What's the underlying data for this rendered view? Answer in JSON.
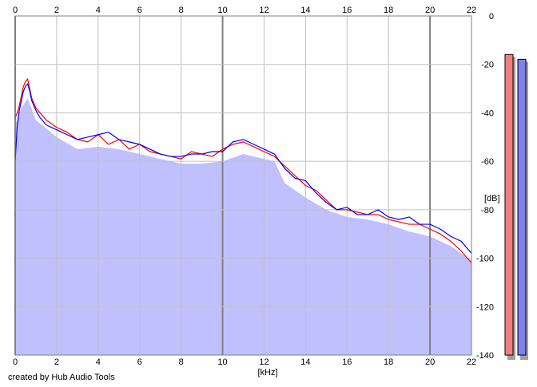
{
  "chart_data": {
    "type": "line",
    "xlabel": "[kHz]",
    "ylabel": "[dB]",
    "xlim": [
      0,
      22
    ],
    "ylim": [
      -140,
      0
    ],
    "x_ticks": [
      "0",
      "2",
      "4",
      "6",
      "8",
      "10",
      "12",
      "14",
      "16",
      "18",
      "20",
      "22"
    ],
    "y_ticks": [
      "0",
      "-20",
      "-40",
      "-60",
      "-80",
      "-100",
      "-120",
      "-140"
    ],
    "grid": true,
    "series": [
      {
        "color": "#ff0000",
        "x": [
          0,
          0.1,
          0.2,
          0.3,
          0.4,
          0.5,
          0.6,
          0.7,
          0.8,
          1,
          1.2,
          1.5,
          2,
          2.5,
          3,
          3.5,
          4,
          4.5,
          5,
          5.5,
          6,
          6.5,
          7,
          7.5,
          8,
          8.5,
          9,
          9.5,
          10,
          10.5,
          11,
          11.5,
          12,
          12.5,
          13,
          13.5,
          14,
          14.5,
          15,
          15.5,
          16,
          16.5,
          17,
          17.5,
          18,
          18.5,
          19,
          19.5,
          20,
          20.5,
          21,
          21.5,
          22
        ],
        "y": [
          -42,
          -40,
          -37,
          -33,
          -29,
          -27,
          -26,
          -30,
          -34,
          -38,
          -40,
          -43,
          -46,
          -48,
          -51,
          -52,
          -49,
          -53,
          -51,
          -55,
          -53,
          -56,
          -57,
          -58,
          -59,
          -56,
          -57,
          -58,
          -55,
          -53,
          -52,
          -54,
          -56,
          -58,
          -62,
          -66,
          -70,
          -72,
          -76,
          -80,
          -80,
          -81,
          -82,
          -82,
          -84,
          -85,
          -86,
          -86,
          -88,
          -90,
          -93,
          -97,
          -102
        ]
      },
      {
        "color": "#0000ff",
        "x": [
          0,
          0.1,
          0.2,
          0.3,
          0.4,
          0.5,
          0.6,
          0.7,
          0.8,
          1,
          1.2,
          1.5,
          2,
          2.5,
          3,
          3.5,
          4,
          4.5,
          5,
          5.5,
          6,
          6.5,
          7,
          7.5,
          8,
          8.5,
          9,
          9.5,
          10,
          10.5,
          11,
          11.5,
          12,
          12.5,
          13,
          13.5,
          14,
          14.5,
          15,
          15.5,
          16,
          16.5,
          17,
          17.5,
          18,
          18.5,
          19,
          19.5,
          20,
          20.5,
          21,
          21.5,
          22
        ],
        "y": [
          -60,
          -45,
          -39,
          -35,
          -31,
          -29,
          -28,
          -31,
          -35,
          -39,
          -42,
          -45,
          -47,
          -49,
          -51,
          -50,
          -49,
          -48,
          -51,
          -52,
          -53,
          -55,
          -57,
          -58,
          -58,
          -57,
          -57,
          -56,
          -56,
          -52,
          -51,
          -53,
          -55,
          -57,
          -63,
          -67,
          -68,
          -73,
          -77,
          -80,
          -79,
          -82,
          -82,
          -80,
          -83,
          -84,
          -83,
          -86,
          -86,
          -88,
          -91,
          -93,
          -98
        ]
      }
    ],
    "filled_area": {
      "color": "#c0c0ff",
      "floor": -140,
      "x": [
        0,
        0.3,
        0.6,
        1,
        2,
        3,
        4,
        5,
        6,
        7,
        8,
        9,
        10,
        11,
        12,
        12.5,
        13,
        14,
        15,
        16,
        17,
        18,
        19,
        20,
        21,
        22
      ],
      "y": [
        -45,
        -38,
        -34,
        -43,
        -50,
        -55,
        -54,
        -55,
        -57,
        -59,
        -61,
        -61,
        -60,
        -57,
        -59,
        -60,
        -69,
        -75,
        -80,
        -83,
        -84,
        -86,
        -89,
        -91,
        -95,
        -101
      ]
    },
    "level_meters": [
      {
        "channel": "left",
        "color": "#f08080",
        "level_db": -8
      },
      {
        "channel": "right",
        "color": "#8080f0",
        "level_db": -10
      }
    ],
    "footer": "created by Hub Audio Tools"
  }
}
